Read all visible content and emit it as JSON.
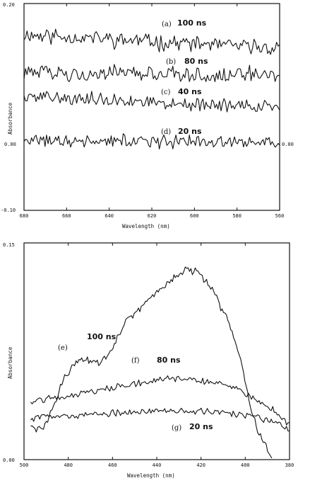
{
  "chart_data": [
    {
      "type": "line",
      "xlabel": "Wavelength (nm)",
      "ylabel": "Absorbance",
      "xlim": [
        680,
        560
      ],
      "ylim": [
        -0.1,
        0.2
      ],
      "x_ticks": [
        "680",
        "660",
        "640",
        "620",
        "600",
        "580",
        "560"
      ],
      "y_tick_labels": {
        "top": "0.20",
        "zero": "0.00",
        "bottom": "-0.10"
      },
      "right_reference_label": "0.00",
      "noisy_traces": true,
      "series": [
        {
          "letter": "(a)",
          "time": "100 ns",
          "x": [
            680,
            560
          ],
          "values": [
            0.155,
            0.135
          ]
        },
        {
          "letter": "(b)",
          "time": "80 ns",
          "x": [
            680,
            560
          ],
          "values": [
            0.1,
            0.095
          ]
        },
        {
          "letter": "(c)",
          "time": "40 ns",
          "x": [
            680,
            560
          ],
          "values": [
            0.065,
            0.05
          ]
        },
        {
          "letter": "(d)",
          "time": "20 ns",
          "x": [
            680,
            560
          ],
          "values": [
            0.0,
            0.0
          ]
        }
      ]
    },
    {
      "type": "line",
      "xlabel": "Wavelength (nm)",
      "ylabel": "Absorbance",
      "xlim": [
        500,
        380
      ],
      "ylim": [
        0.0,
        0.15
      ],
      "x_ticks": [
        "500",
        "480",
        "460",
        "440",
        "420",
        "400",
        "380"
      ],
      "y_tick_labels": {
        "top": "0.15",
        "bottom": "0.00"
      },
      "noisy_traces": true,
      "series": [
        {
          "letter": "(e)",
          "time": "100 ns",
          "x": [
            497,
            494,
            490,
            486,
            482,
            478,
            474,
            470,
            466,
            462,
            458,
            454,
            450,
            446,
            442,
            438,
            434,
            430,
            426,
            422,
            418,
            414,
            410,
            406,
            402,
            398,
            394,
            390,
            388
          ],
          "values": [
            0.023,
            0.02,
            0.025,
            0.04,
            0.055,
            0.065,
            0.07,
            0.068,
            0.067,
            0.072,
            0.085,
            0.095,
            0.1,
            0.107,
            0.113,
            0.119,
            0.124,
            0.128,
            0.132,
            0.13,
            0.124,
            0.115,
            0.102,
            0.09,
            0.07,
            0.04,
            0.018,
            0.008,
            0.0
          ]
        },
        {
          "letter": "(f)",
          "time": "80 ns",
          "x": [
            497,
            490,
            480,
            470,
            460,
            450,
            440,
            430,
            420,
            410,
            400,
            390,
            384,
            380
          ],
          "values": [
            0.04,
            0.042,
            0.044,
            0.047,
            0.05,
            0.053,
            0.055,
            0.056,
            0.055,
            0.052,
            0.046,
            0.037,
            0.03,
            0.025
          ]
        },
        {
          "letter": "(g)",
          "time": "20 ns",
          "x": [
            497,
            490,
            480,
            470,
            460,
            450,
            440,
            430,
            420,
            410,
            400,
            390,
            384,
            380
          ],
          "values": [
            0.028,
            0.03,
            0.03,
            0.031,
            0.032,
            0.033,
            0.034,
            0.034,
            0.034,
            0.033,
            0.031,
            0.028,
            0.024,
            0.02
          ]
        }
      ]
    }
  ]
}
